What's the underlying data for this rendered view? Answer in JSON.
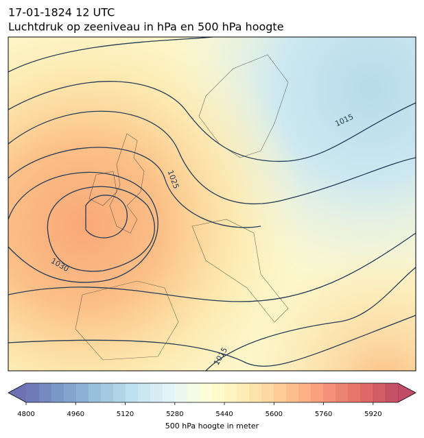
{
  "header": {
    "title_line1": "17-01-1824 12 UTC",
    "title_line2": "Luchtdruk op zeeniveau in hPa en 500 hPa hoogte"
  },
  "map": {
    "isobar_labels": [
      "1015",
      "1025",
      "1030",
      "1015"
    ]
  },
  "colorbar": {
    "label": "500 hPa hoogte in meter",
    "lim": [
      4800,
      6000
    ],
    "ticks": [
      4800,
      4960,
      5120,
      5280,
      5440,
      5600,
      5760,
      5920
    ]
  }
}
